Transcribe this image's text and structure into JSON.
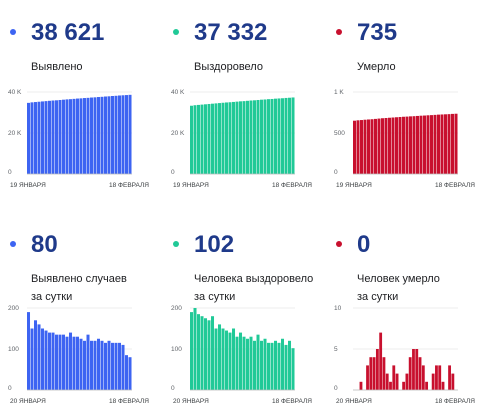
{
  "colors": {
    "blue": "#3d64f2",
    "green": "#20c997",
    "red": "#c8102e"
  },
  "panels": [
    {
      "value": "38 621",
      "label_lines": [
        "Выявлено"
      ],
      "color": "blue"
    },
    {
      "value": "37 332",
      "label_lines": [
        "Выздоровело"
      ],
      "color": "green"
    },
    {
      "value": "735",
      "label_lines": [
        "Умерло"
      ],
      "color": "red"
    },
    {
      "value": "80",
      "label_lines": [
        "Выявлено случаев",
        "за сутки"
      ],
      "color": "blue"
    },
    {
      "value": "102",
      "label_lines": [
        "Человека выздоровело",
        "за сутки"
      ],
      "color": "green"
    },
    {
      "value": "0",
      "label_lines": [
        "Человек умерло",
        "за сутки"
      ],
      "color": "red"
    }
  ],
  "chart_data": [
    {
      "type": "bar",
      "series": [
        {
          "values": [
            34700,
            34950,
            35100,
            35250,
            35400,
            35550,
            35700,
            35850,
            35950,
            36100,
            36250,
            36400,
            36500,
            36650,
            36800,
            36900,
            37050,
            37150,
            37300,
            37400,
            37550,
            37650,
            37800,
            37900,
            38050,
            38150,
            38300,
            38400,
            38500,
            38621
          ]
        }
      ],
      "ylim": [
        0,
        40000
      ],
      "yticks": [
        "0",
        "20 K",
        "40 K"
      ],
      "ytick_values": [
        0,
        20000,
        40000
      ],
      "xlabels": [
        "19 ЯНВАРЯ",
        "18 ФЕВРАЛЯ"
      ],
      "grid": true
    },
    {
      "type": "bar",
      "series": [
        {
          "values": [
            33300,
            33550,
            33700,
            33850,
            34000,
            34150,
            34300,
            34450,
            34600,
            34750,
            34900,
            35000,
            35150,
            35300,
            35450,
            35550,
            35700,
            35850,
            35950,
            36100,
            36250,
            36350,
            36500,
            36600,
            36750,
            36850,
            36950,
            37100,
            37200,
            37332
          ]
        }
      ],
      "ylim": [
        0,
        40000
      ],
      "yticks": [
        "0",
        "20 K",
        "40 K"
      ],
      "ytick_values": [
        0,
        20000,
        40000
      ],
      "xlabels": [
        "19 ЯНВАРЯ",
        "18 ФЕВРАЛЯ"
      ],
      "grid": true
    },
    {
      "type": "bar",
      "series": [
        {
          "values": [
            650,
            655,
            658,
            662,
            665,
            668,
            672,
            676,
            680,
            683,
            686,
            689,
            692,
            695,
            698,
            700,
            703,
            705,
            708,
            711,
            713,
            716,
            718,
            721,
            724,
            726,
            728,
            730,
            733,
            735
          ]
        }
      ],
      "ylim": [
        0,
        1000
      ],
      "yticks": [
        "0",
        "500",
        "1 K"
      ],
      "ytick_values": [
        0,
        500,
        1000
      ],
      "xlabels": [
        "19 ЯНВАРЯ",
        "18 ФЕВРАЛЯ"
      ],
      "grid": true
    },
    {
      "type": "bar",
      "series": [
        {
          "values": [
            190,
            150,
            170,
            160,
            150,
            145,
            140,
            140,
            135,
            135,
            135,
            130,
            140,
            130,
            130,
            125,
            120,
            135,
            120,
            120,
            125,
            120,
            115,
            120,
            115,
            115,
            115,
            110,
            85,
            80
          ]
        }
      ],
      "ylim": [
        0,
        200
      ],
      "yticks": [
        "0",
        "100",
        "200"
      ],
      "ytick_values": [
        0,
        100,
        200
      ],
      "xlabels": [
        "20 ЯНВАРЯ",
        "18 ФЕВРАЛЯ"
      ],
      "grid": true
    },
    {
      "type": "bar",
      "series": [
        {
          "values": [
            190,
            200,
            185,
            180,
            175,
            170,
            180,
            150,
            160,
            150,
            145,
            140,
            150,
            130,
            140,
            130,
            125,
            130,
            120,
            135,
            120,
            125,
            115,
            115,
            120,
            115,
            125,
            110,
            120,
            102
          ]
        }
      ],
      "ylim": [
        0,
        200
      ],
      "yticks": [
        "0",
        "100",
        "200"
      ],
      "ytick_values": [
        0,
        100,
        200
      ],
      "xlabels": [
        "20 ЯНВАРЯ",
        "18 ФЕВРАЛЯ"
      ],
      "grid": true
    },
    {
      "type": "bar",
      "series": [
        {
          "values": [
            0,
            0,
            1,
            0,
            3,
            4,
            4,
            5,
            7,
            4,
            2,
            1,
            3,
            2,
            0,
            1,
            2,
            4,
            5,
            5,
            4,
            3,
            1,
            0,
            2,
            3,
            3,
            1,
            0,
            3,
            2,
            0
          ]
        }
      ],
      "ylim": [
        0,
        10
      ],
      "yticks": [
        "0",
        "5",
        "10"
      ],
      "ytick_values": [
        0,
        5,
        10
      ],
      "xlabels": [
        "20 ЯНВАРЯ",
        "18 ФЕВРАЛЯ"
      ],
      "grid": true
    }
  ]
}
